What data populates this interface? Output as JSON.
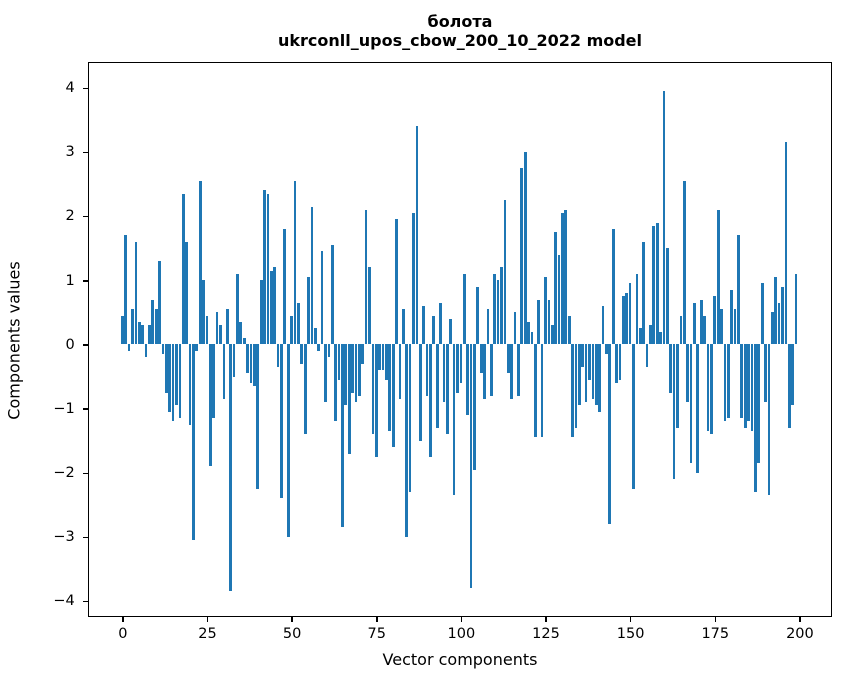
{
  "title_line1": "болота",
  "title_line2": "ukrconll_upos_cbow_200_10_2022 model",
  "chart_data": {
    "type": "bar",
    "title": "болота — ukrconll_upos_cbow_200_10_2022 model",
    "xlabel": "Vector components",
    "ylabel": "Components values",
    "bar_color": "#1f77b4",
    "axis_color": "#000000",
    "background_color": "#ffffff",
    "grid": false,
    "legend": false,
    "bar_width": 0.8,
    "xlim": [
      -10.39,
      209.39
    ],
    "ylim": [
      -4.245,
      4.41
    ],
    "x_tick_labels": [
      "0",
      "25",
      "50",
      "75",
      "100",
      "125",
      "150",
      "175",
      "200"
    ],
    "x_tick_values": [
      0,
      25,
      50,
      75,
      100,
      125,
      150,
      175,
      200
    ],
    "y_tick_labels": [
      "4",
      "3",
      "2",
      "1",
      "0",
      "−1",
      "−2",
      "−3",
      "−4"
    ],
    "y_tick_values": [
      4,
      3,
      2,
      1,
      0,
      -1,
      -2,
      -3,
      -4
    ],
    "n_bars": 200,
    "x": "indices 0..199",
    "values": [
      0.45,
      1.7,
      -0.1,
      0.55,
      1.6,
      0.35,
      0.3,
      -0.2,
      0.3,
      0.7,
      0.55,
      1.3,
      -0.15,
      -0.75,
      -1.05,
      -1.2,
      -0.95,
      -1.15,
      2.35,
      1.6,
      -1.25,
      -3.05,
      -0.1,
      2.55,
      1.0,
      0.45,
      -1.9,
      -1.15,
      0.5,
      0.3,
      -0.85,
      0.55,
      -3.85,
      -0.5,
      1.1,
      0.35,
      0.1,
      -0.45,
      -0.6,
      -0.65,
      -2.25,
      1.0,
      2.4,
      2.35,
      1.15,
      1.2,
      -0.35,
      -2.4,
      1.8,
      -3.0,
      0.45,
      2.55,
      0.65,
      -0.3,
      -1.4,
      1.05,
      2.15,
      0.25,
      -0.1,
      1.45,
      -0.9,
      -0.2,
      1.55,
      -1.2,
      -0.55,
      -2.85,
      -0.95,
      -1.7,
      -0.75,
      -0.9,
      -0.8,
      -0.3,
      2.1,
      1.2,
      -1.4,
      -1.75,
      -0.4,
      -0.4,
      -0.55,
      -1.35,
      -1.6,
      1.95,
      -0.85,
      0.55,
      -3.0,
      -2.3,
      2.05,
      3.4,
      -1.5,
      0.6,
      -0.8,
      -1.75,
      0.45,
      -1.3,
      0.65,
      -0.9,
      -1.4,
      0.4,
      -2.35,
      -0.75,
      -0.6,
      1.1,
      -1.1,
      -3.8,
      -1.95,
      0.9,
      -0.45,
      -0.85,
      0.55,
      -0.8,
      1.1,
      1.0,
      1.2,
      2.25,
      -0.45,
      -0.85,
      0.5,
      -0.8,
      2.75,
      3.0,
      0.35,
      0.2,
      -1.45,
      0.7,
      -1.45,
      1.05,
      0.7,
      0.3,
      1.75,
      1.4,
      2.05,
      2.1,
      0.45,
      -1.45,
      -1.3,
      -0.95,
      -0.35,
      -0.9,
      -0.55,
      -0.85,
      -0.95,
      -1.05,
      0.6,
      -0.15,
      -2.8,
      1.8,
      -0.6,
      -0.55,
      0.75,
      0.8,
      0.95,
      -2.25,
      1.1,
      0.25,
      1.6,
      -0.35,
      0.3,
      1.85,
      1.9,
      0.2,
      3.95,
      1.5,
      -0.75,
      -2.1,
      -1.3,
      0.45,
      2.55,
      -0.9,
      -1.85,
      0.65,
      -2.0,
      0.7,
      0.45,
      -1.35,
      -1.4,
      0.75,
      2.1,
      0.55,
      -1.2,
      -1.15,
      0.85,
      0.55,
      1.7,
      -1.15,
      -1.3,
      -1.2,
      -1.35,
      -2.3,
      -1.85,
      0.95,
      -0.9,
      -2.35,
      0.5,
      1.05,
      0.65,
      0.9,
      3.15,
      -1.3,
      -0.95,
      1.1
    ]
  }
}
